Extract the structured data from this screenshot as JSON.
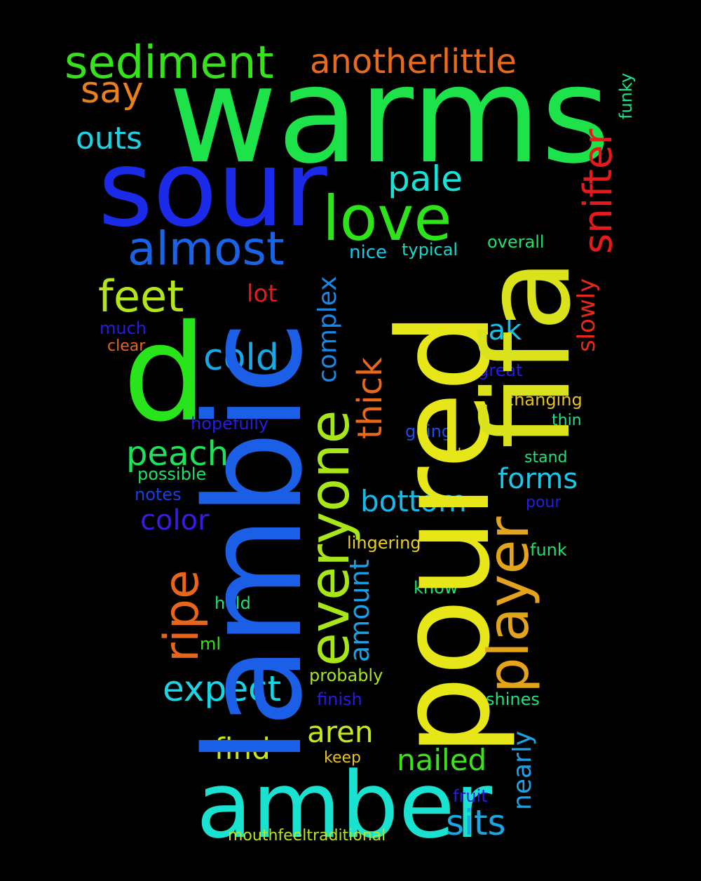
{
  "words": [
    {
      "text": "warms",
      "color": "#1de24a"
    },
    {
      "text": "poured",
      "color": "#e6e619"
    },
    {
      "text": "lambic",
      "color": "#1a5fe6"
    },
    {
      "text": "sour",
      "color": "#1a2ae8"
    },
    {
      "text": "amber",
      "color": "#19e3d0"
    },
    {
      "text": "d",
      "color": "#27e51a"
    },
    {
      "text": "fifa",
      "color": "#d9e21a"
    },
    {
      "text": "everyone",
      "color": "#a8e61a"
    },
    {
      "text": "player",
      "color": "#e3a31a"
    },
    {
      "text": "love",
      "color": "#2fe31a"
    },
    {
      "text": "sediment",
      "color": "#36e31a"
    },
    {
      "text": "anotherlittle",
      "color": "#e86a1c"
    },
    {
      "text": "say",
      "color": "#e8801c"
    },
    {
      "text": "snifter",
      "color": "#e61a1a"
    },
    {
      "text": "almost",
      "color": "#1a63e6"
    },
    {
      "text": "outs",
      "color": "#19d3e6"
    },
    {
      "text": "pale",
      "color": "#19e3d8"
    },
    {
      "text": "feet",
      "color": "#b2e61a"
    },
    {
      "text": "cold",
      "color": "#19a8e6"
    },
    {
      "text": "complex",
      "color": "#1a86e6"
    },
    {
      "text": "thick",
      "color": "#e8681c"
    },
    {
      "text": "ripe",
      "color": "#e8661c"
    },
    {
      "text": "expect",
      "color": "#19d6e6"
    },
    {
      "text": "peach",
      "color": "#1de25a"
    },
    {
      "text": "bottom",
      "color": "#19b8e6"
    },
    {
      "text": "forms",
      "color": "#19c8e6"
    },
    {
      "text": "oak",
      "color": "#19c0e6"
    },
    {
      "text": "color",
      "color": "#3a1ae6"
    },
    {
      "text": "find",
      "color": "#c6e61a"
    },
    {
      "text": "aren",
      "color": "#c8e61a"
    },
    {
      "text": "nailed",
      "color": "#3be31a"
    },
    {
      "text": "sits",
      "color": "#19a8e6"
    },
    {
      "text": "amount",
      "color": "#19a0e6"
    },
    {
      "text": "nearly",
      "color": "#1aa4e6"
    },
    {
      "text": "lot",
      "color": "#e61a1a"
    },
    {
      "text": "slowly",
      "color": "#e6271a"
    },
    {
      "text": "nice",
      "color": "#19c8e6"
    },
    {
      "text": "typical",
      "color": "#19d8c8"
    },
    {
      "text": "overall",
      "color": "#1de270"
    },
    {
      "text": "much",
      "color": "#2a1ae6"
    },
    {
      "text": "clear",
      "color": "#e8661c"
    },
    {
      "text": "great",
      "color": "#2a1ae6"
    },
    {
      "text": "changing",
      "color": "#e8c21c"
    },
    {
      "text": "thin",
      "color": "#1de28a"
    },
    {
      "text": "hopefully",
      "color": "#2a1ae6"
    },
    {
      "text": "going",
      "color": "#1a4fe6"
    },
    {
      "text": "onto",
      "color": "#e8c21c"
    },
    {
      "text": "stand",
      "color": "#1de27a"
    },
    {
      "text": "possible",
      "color": "#1de26a"
    },
    {
      "text": "notes",
      "color": "#1a3fe6"
    },
    {
      "text": "pour",
      "color": "#2a1ae6"
    },
    {
      "text": "lingering",
      "color": "#e8d01c"
    },
    {
      "text": "funk",
      "color": "#1de26a"
    },
    {
      "text": "know",
      "color": "#1de26a"
    },
    {
      "text": "hold",
      "color": "#1de27a"
    },
    {
      "text": "ml",
      "color": "#3be31a"
    },
    {
      "text": "probably",
      "color": "#a8e61a"
    },
    {
      "text": "finish",
      "color": "#2a1ae6"
    },
    {
      "text": "shines",
      "color": "#1de27a"
    },
    {
      "text": "keep",
      "color": "#e8c21c"
    },
    {
      "text": "fruit",
      "color": "#2a1ae6"
    },
    {
      "text": "mouthfeeltraditional",
      "color": "#b8e61a"
    },
    {
      "text": "funky",
      "color": "#1de28a"
    }
  ]
}
